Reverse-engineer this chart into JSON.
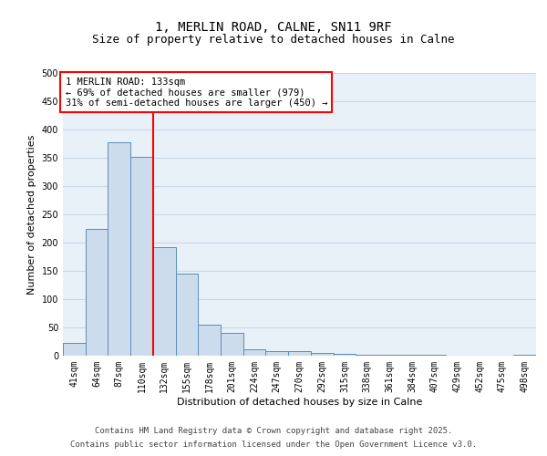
{
  "title_line1": "1, MERLIN ROAD, CALNE, SN11 9RF",
  "title_line2": "Size of property relative to detached houses in Calne",
  "xlabel": "Distribution of detached houses by size in Calne",
  "ylabel": "Number of detached properties",
  "categories": [
    "41sqm",
    "64sqm",
    "87sqm",
    "110sqm",
    "132sqm",
    "155sqm",
    "178sqm",
    "201sqm",
    "224sqm",
    "247sqm",
    "270sqm",
    "292sqm",
    "315sqm",
    "338sqm",
    "361sqm",
    "384sqm",
    "407sqm",
    "429sqm",
    "452sqm",
    "475sqm",
    "498sqm"
  ],
  "values": [
    22,
    225,
    378,
    352,
    192,
    145,
    55,
    40,
    12,
    8,
    8,
    5,
    3,
    2,
    1,
    1,
    1,
    0,
    0,
    0,
    1
  ],
  "bar_color": "#cddcec",
  "bar_edge_color": "#5b8db8",
  "vline_color": "red",
  "vline_index": 4,
  "annotation_text": "1 MERLIN ROAD: 133sqm\n← 69% of detached houses are smaller (979)\n31% of semi-detached houses are larger (450) →",
  "annotation_box_color": "white",
  "annotation_box_edge_color": "red",
  "ylim": [
    0,
    500
  ],
  "yticks": [
    0,
    50,
    100,
    150,
    200,
    250,
    300,
    350,
    400,
    450,
    500
  ],
  "grid_color": "#c8d8e8",
  "background_color": "#e8f0f8",
  "footer_line1": "Contains HM Land Registry data © Crown copyright and database right 2025.",
  "footer_line2": "Contains public sector information licensed under the Open Government Licence v3.0.",
  "title_fontsize": 10,
  "subtitle_fontsize": 9,
  "axis_label_fontsize": 8,
  "tick_fontsize": 7,
  "annotation_fontsize": 7.5,
  "footer_fontsize": 6.5
}
